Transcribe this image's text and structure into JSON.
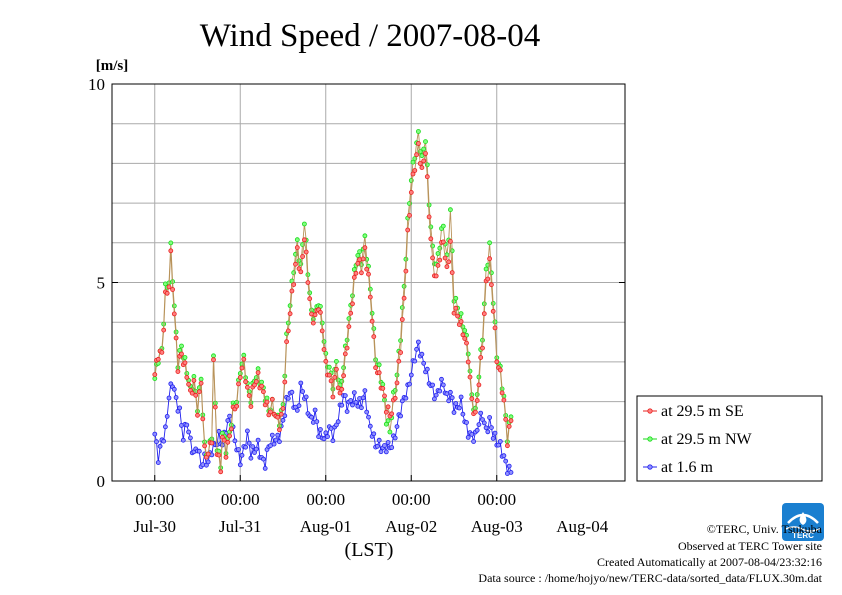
{
  "chart_data": {
    "type": "line",
    "title": "Wind Speed / 2007-08-04",
    "ylabel": "[m/s]",
    "xlabel": "(LST)",
    "ylim": [
      0,
      10
    ],
    "yticks": [
      0,
      5,
      10
    ],
    "xlim_days": [
      -0.5,
      5.5
    ],
    "xtick_days": [
      0,
      1,
      2,
      3,
      4
    ],
    "xtick_time_label": "00:00",
    "x_date_labels": [
      "Jul-30",
      "Jul-31",
      "Aug-01",
      "Aug-02",
      "Aug-03",
      "Aug-04"
    ],
    "grid": true,
    "legend_position": "right",
    "sampling": "30-minute values, 2007-07-29 12:00 to 2007-08-04 23:30 LST",
    "series": [
      {
        "name": "at 29.5 m SE",
        "color": "#e8211f",
        "marker_fill": "#ff8080",
        "line_color": "#b8935a",
        "anchors": [
          [
            0,
            2.6
          ],
          [
            2,
            3.2
          ],
          [
            4,
            3.3
          ],
          [
            6,
            4.7
          ],
          [
            8,
            4.9
          ],
          [
            9,
            5.6
          ],
          [
            11,
            4.1
          ],
          [
            13,
            2.9
          ],
          [
            15,
            3.3
          ],
          [
            18,
            2.7
          ],
          [
            20,
            2.1
          ],
          [
            22,
            2.4
          ],
          [
            24,
            1.8
          ],
          [
            26,
            2.6
          ],
          [
            28,
            0.8
          ],
          [
            30,
            0.6
          ],
          [
            32,
            1.0
          ],
          [
            33,
            2.9
          ],
          [
            35,
            0.8
          ],
          [
            37,
            0.4
          ],
          [
            38,
            1.2
          ],
          [
            40,
            0.7
          ],
          [
            42,
            1.0
          ],
          [
            44,
            1.7
          ],
          [
            46,
            2.0
          ],
          [
            48,
            2.8
          ],
          [
            50,
            3.0
          ],
          [
            52,
            2.2
          ],
          [
            54,
            1.9
          ],
          [
            56,
            2.5
          ],
          [
            58,
            2.7
          ],
          [
            60,
            2.4
          ],
          [
            62,
            2.0
          ],
          [
            64,
            1.6
          ],
          [
            66,
            1.9
          ],
          [
            68,
            1.7
          ],
          [
            70,
            1.5
          ],
          [
            72,
            1.8
          ],
          [
            74,
            3.3
          ],
          [
            76,
            4.2
          ],
          [
            78,
            5.1
          ],
          [
            80,
            5.9
          ],
          [
            82,
            5.2
          ],
          [
            84,
            6.1
          ],
          [
            86,
            5.0
          ],
          [
            88,
            4.1
          ],
          [
            90,
            4.2
          ],
          [
            92,
            4.5
          ],
          [
            94,
            3.8
          ],
          [
            96,
            2.8
          ],
          [
            98,
            2.6
          ],
          [
            100,
            2.3
          ],
          [
            102,
            2.9
          ],
          [
            104,
            2.1
          ],
          [
            106,
            2.6
          ],
          [
            108,
            3.4
          ],
          [
            110,
            4.2
          ],
          [
            112,
            5.1
          ],
          [
            114,
            5.6
          ],
          [
            116,
            5.3
          ],
          [
            118,
            5.7
          ],
          [
            120,
            5.1
          ],
          [
            122,
            4.2
          ],
          [
            124,
            3.0
          ],
          [
            126,
            2.6
          ],
          [
            128,
            2.2
          ],
          [
            130,
            1.8
          ],
          [
            132,
            1.7
          ],
          [
            134,
            2.0
          ],
          [
            136,
            2.5
          ],
          [
            138,
            3.3
          ],
          [
            140,
            4.5
          ],
          [
            142,
            6.2
          ],
          [
            144,
            7.4
          ],
          [
            146,
            8.0
          ],
          [
            148,
            8.4
          ],
          [
            150,
            7.7
          ],
          [
            152,
            8.3
          ],
          [
            154,
            6.8
          ],
          [
            156,
            5.6
          ],
          [
            158,
            5.1
          ],
          [
            160,
            5.6
          ],
          [
            162,
            6.0
          ],
          [
            164,
            5.3
          ],
          [
            166,
            6.1
          ],
          [
            168,
            4.4
          ],
          [
            170,
            4.1
          ],
          [
            172,
            3.8
          ],
          [
            174,
            3.6
          ],
          [
            176,
            3.2
          ],
          [
            178,
            2.1
          ],
          [
            180,
            1.6
          ],
          [
            182,
            2.4
          ],
          [
            184,
            3.4
          ],
          [
            186,
            5.0
          ],
          [
            188,
            5.6
          ],
          [
            190,
            4.4
          ],
          [
            192,
            3.0
          ],
          [
            194,
            2.6
          ],
          [
            196,
            2.0
          ],
          [
            198,
            1.1
          ],
          [
            200,
            1.6
          ]
        ]
      },
      {
        "name": "at 29.5 m NW",
        "color": "#18d818",
        "marker_fill": "#80ff80",
        "line_color": "#b8935a",
        "anchors": [
          [
            0,
            2.5
          ],
          [
            2,
            3.1
          ],
          [
            4,
            3.4
          ],
          [
            6,
            4.9
          ],
          [
            8,
            5.0
          ],
          [
            9,
            5.8
          ],
          [
            11,
            4.3
          ],
          [
            13,
            3.0
          ],
          [
            15,
            3.5
          ],
          [
            18,
            2.8
          ],
          [
            20,
            2.2
          ],
          [
            22,
            2.5
          ],
          [
            24,
            1.9
          ],
          [
            26,
            2.7
          ],
          [
            28,
            0.9
          ],
          [
            30,
            0.6
          ],
          [
            32,
            1.1
          ],
          [
            33,
            3.0
          ],
          [
            35,
            0.9
          ],
          [
            37,
            0.5
          ],
          [
            38,
            1.3
          ],
          [
            40,
            0.8
          ],
          [
            42,
            1.1
          ],
          [
            44,
            1.8
          ],
          [
            46,
            2.1
          ],
          [
            48,
            2.9
          ],
          [
            50,
            3.1
          ],
          [
            52,
            2.3
          ],
          [
            54,
            2.0
          ],
          [
            56,
            2.6
          ],
          [
            58,
            2.8
          ],
          [
            60,
            2.5
          ],
          [
            62,
            2.1
          ],
          [
            64,
            1.7
          ],
          [
            66,
            1.9
          ],
          [
            68,
            1.7
          ],
          [
            70,
            1.6
          ],
          [
            72,
            1.9
          ],
          [
            74,
            3.5
          ],
          [
            76,
            4.4
          ],
          [
            78,
            5.4
          ],
          [
            80,
            6.1
          ],
          [
            82,
            5.4
          ],
          [
            84,
            6.5
          ],
          [
            86,
            5.2
          ],
          [
            88,
            4.2
          ],
          [
            90,
            4.3
          ],
          [
            92,
            4.6
          ],
          [
            94,
            4.0
          ],
          [
            96,
            3.0
          ],
          [
            98,
            2.8
          ],
          [
            100,
            2.5
          ],
          [
            102,
            3.1
          ],
          [
            104,
            2.3
          ],
          [
            106,
            2.8
          ],
          [
            108,
            3.6
          ],
          [
            110,
            4.4
          ],
          [
            112,
            5.3
          ],
          [
            114,
            5.8
          ],
          [
            116,
            5.5
          ],
          [
            118,
            6.0
          ],
          [
            120,
            5.3
          ],
          [
            122,
            4.4
          ],
          [
            124,
            3.2
          ],
          [
            126,
            2.8
          ],
          [
            128,
            2.3
          ],
          [
            130,
            1.5
          ],
          [
            132,
            1.3
          ],
          [
            134,
            2.2
          ],
          [
            136,
            2.7
          ],
          [
            138,
            3.6
          ],
          [
            140,
            4.8
          ],
          [
            142,
            6.5
          ],
          [
            144,
            7.7
          ],
          [
            146,
            8.3
          ],
          [
            148,
            8.7
          ],
          [
            150,
            8.0
          ],
          [
            152,
            8.6
          ],
          [
            154,
            7.1
          ],
          [
            156,
            5.9
          ],
          [
            158,
            5.4
          ],
          [
            160,
            5.9
          ],
          [
            162,
            6.4
          ],
          [
            164,
            5.6
          ],
          [
            166,
            6.9
          ],
          [
            168,
            4.7
          ],
          [
            170,
            4.3
          ],
          [
            172,
            4.0
          ],
          [
            174,
            3.8
          ],
          [
            176,
            3.4
          ],
          [
            178,
            2.2
          ],
          [
            180,
            1.7
          ],
          [
            182,
            2.6
          ],
          [
            184,
            3.6
          ],
          [
            186,
            5.3
          ],
          [
            188,
            6.0
          ],
          [
            190,
            4.6
          ],
          [
            192,
            3.1
          ],
          [
            194,
            2.7
          ],
          [
            196,
            2.1
          ],
          [
            198,
            1.2
          ],
          [
            200,
            1.7
          ]
        ]
      },
      {
        "name": "at 1.6 m",
        "color": "#2020ee",
        "marker_fill": "#9090ff",
        "line_color": "#2020ee",
        "anchors": [
          [
            0,
            1.1
          ],
          [
            2,
            0.6
          ],
          [
            4,
            1.1
          ],
          [
            6,
            1.3
          ],
          [
            8,
            2.1
          ],
          [
            10,
            2.4
          ],
          [
            12,
            2.0
          ],
          [
            14,
            1.8
          ],
          [
            16,
            1.2
          ],
          [
            18,
            1.5
          ],
          [
            20,
            0.9
          ],
          [
            22,
            0.6
          ],
          [
            24,
            0.9
          ],
          [
            26,
            0.5
          ],
          [
            28,
            0.6
          ],
          [
            30,
            0.4
          ],
          [
            32,
            0.7
          ],
          [
            34,
            0.9
          ],
          [
            36,
            1.2
          ],
          [
            38,
            1.0
          ],
          [
            40,
            1.3
          ],
          [
            42,
            1.5
          ],
          [
            44,
            1.2
          ],
          [
            46,
            0.9
          ],
          [
            48,
            0.6
          ],
          [
            50,
            0.8
          ],
          [
            52,
            1.1
          ],
          [
            54,
            0.6
          ],
          [
            56,
            0.8
          ],
          [
            58,
            1.0
          ],
          [
            60,
            0.6
          ],
          [
            62,
            0.4
          ],
          [
            64,
            0.8
          ],
          [
            66,
            1.0
          ],
          [
            68,
            1.1
          ],
          [
            70,
            1.2
          ],
          [
            72,
            1.5
          ],
          [
            74,
            1.9
          ],
          [
            76,
            2.2
          ],
          [
            78,
            2.0
          ],
          [
            80,
            1.8
          ],
          [
            82,
            2.4
          ],
          [
            84,
            2.1
          ],
          [
            86,
            1.7
          ],
          [
            88,
            1.5
          ],
          [
            90,
            1.8
          ],
          [
            92,
            1.3
          ],
          [
            94,
            1.1
          ],
          [
            96,
            1.0
          ],
          [
            98,
            1.3
          ],
          [
            100,
            1.2
          ],
          [
            102,
            1.5
          ],
          [
            104,
            1.8
          ],
          [
            106,
            2.1
          ],
          [
            108,
            1.8
          ],
          [
            110,
            2.0
          ],
          [
            112,
            2.2
          ],
          [
            114,
            2.0
          ],
          [
            116,
            1.9
          ],
          [
            118,
            2.1
          ],
          [
            120,
            1.5
          ],
          [
            122,
            1.3
          ],
          [
            124,
            1.0
          ],
          [
            126,
            0.9
          ],
          [
            128,
            0.7
          ],
          [
            130,
            0.8
          ],
          [
            132,
            0.9
          ],
          [
            134,
            1.1
          ],
          [
            136,
            1.4
          ],
          [
            138,
            1.7
          ],
          [
            140,
            2.0
          ],
          [
            142,
            2.3
          ],
          [
            144,
            2.8
          ],
          [
            146,
            3.2
          ],
          [
            148,
            3.4
          ],
          [
            150,
            3.0
          ],
          [
            152,
            2.8
          ],
          [
            154,
            2.6
          ],
          [
            156,
            2.4
          ],
          [
            158,
            2.1
          ],
          [
            160,
            2.3
          ],
          [
            162,
            2.4
          ],
          [
            164,
            2.1
          ],
          [
            166,
            2.3
          ],
          [
            168,
            1.9
          ],
          [
            170,
            1.8
          ],
          [
            172,
            1.9
          ],
          [
            174,
            1.5
          ],
          [
            176,
            1.3
          ],
          [
            178,
            1.2
          ],
          [
            180,
            1.1
          ],
          [
            182,
            1.4
          ],
          [
            184,
            1.6
          ],
          [
            186,
            1.3
          ],
          [
            188,
            1.6
          ],
          [
            190,
            1.2
          ],
          [
            192,
            0.9
          ],
          [
            194,
            0.8
          ],
          [
            196,
            0.6
          ],
          [
            198,
            0.4
          ],
          [
            200,
            0.3
          ]
        ]
      }
    ]
  },
  "credits": {
    "copyright": "©TERC, Univ. Tsukuba",
    "observed": "Observed at TERC Tower site",
    "created": "Created Automatically at 2007-08-04/23:32:16",
    "source": "Data source : /home/hojyo/new/TERC-data/sorted_data/FLUX.30m.dat",
    "logo_text": "TERC",
    "logo_color": "#1a7fd0"
  }
}
